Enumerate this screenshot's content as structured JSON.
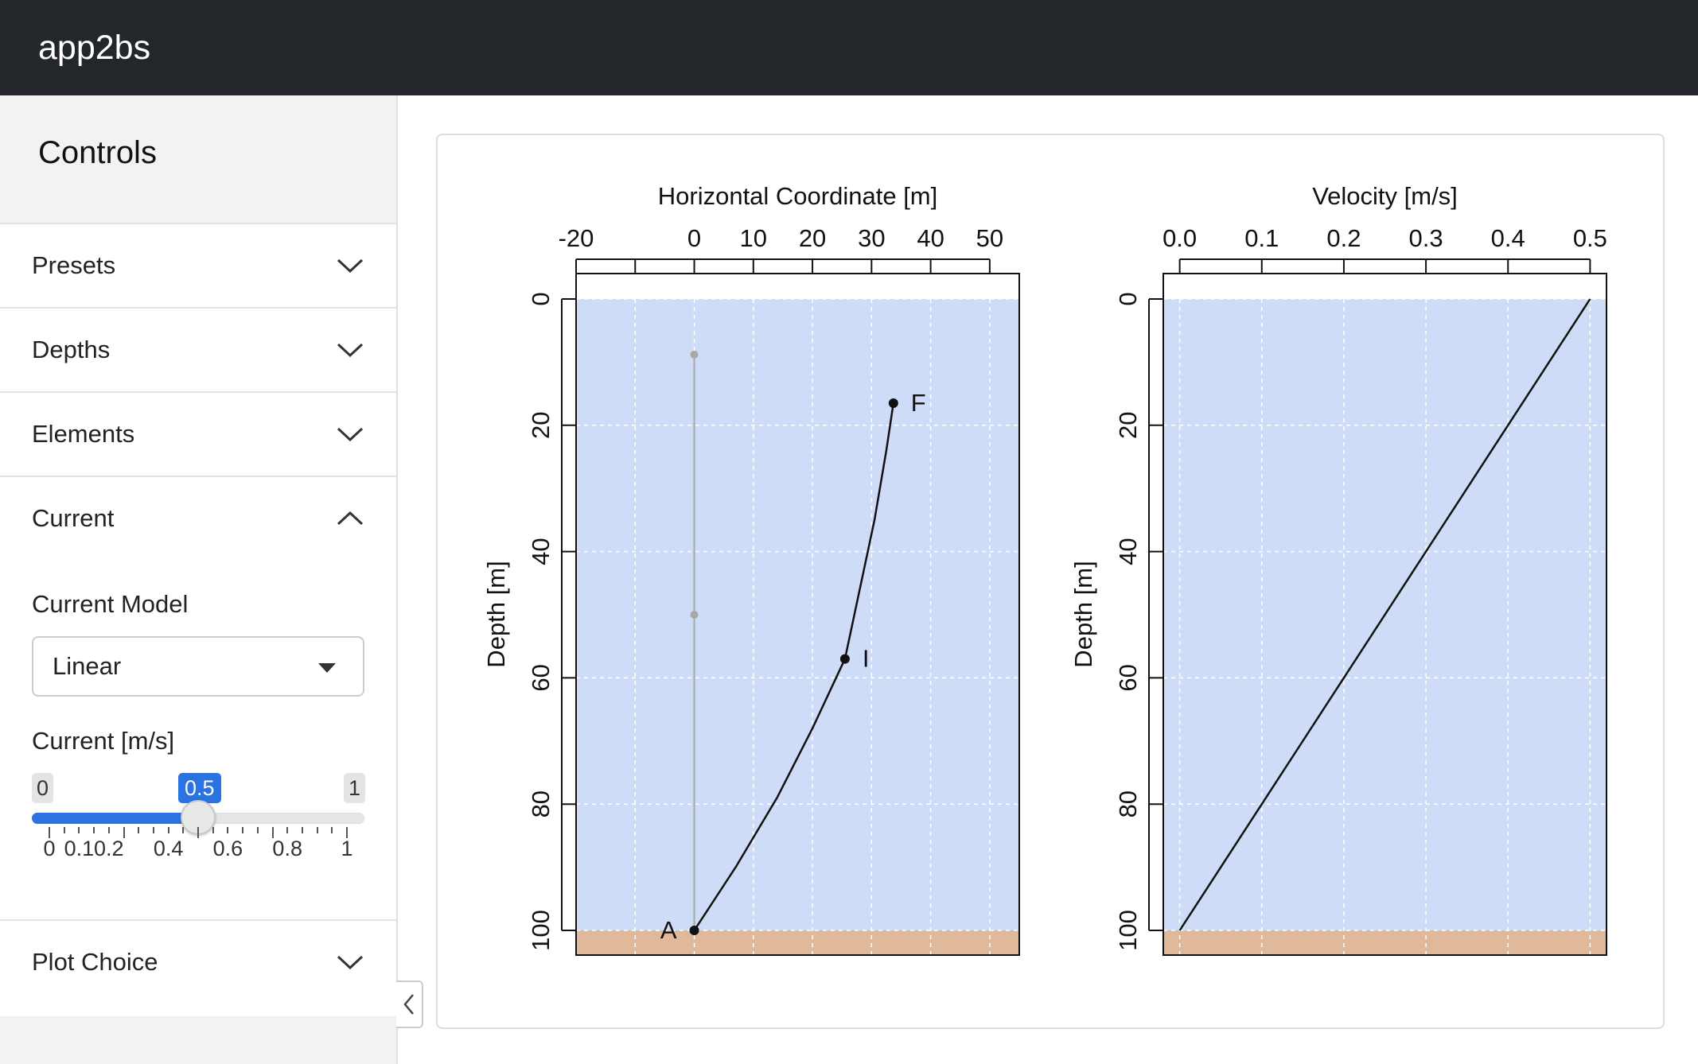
{
  "app": {
    "title": "app2bs"
  },
  "sidebar": {
    "title": "Controls",
    "sections": [
      {
        "label": "Presets",
        "expanded": false
      },
      {
        "label": "Depths",
        "expanded": false
      },
      {
        "label": "Elements",
        "expanded": false
      },
      {
        "label": "Current",
        "expanded": true
      },
      {
        "label": "Plot Choice",
        "expanded": false
      }
    ],
    "current": {
      "model_label": "Current Model",
      "model_value": "Linear",
      "speed_label": "Current [m/s]",
      "slider": {
        "min_label": "0",
        "max_label": "1",
        "value_label": "0.5",
        "min": 0,
        "max": 1,
        "value": 0.5,
        "tick_labels": [
          "0",
          "0.1",
          "0.2",
          "0.4",
          "0.6",
          "0.8",
          "1"
        ]
      }
    }
  },
  "colors": {
    "navbar": "#23272b",
    "accent": "#2b73e0",
    "water": "#cfdcf8",
    "seabed": "#dfb99a"
  },
  "chart_data": [
    {
      "type": "line",
      "title": "Horizontal Coordinate [m]",
      "xlabel": "Horizontal Coordinate [m]",
      "ylabel": "Depth [m]",
      "xlim": [
        -20,
        55
      ],
      "ylim": [
        100,
        0
      ],
      "xticks": [
        "-20",
        "0",
        "10",
        "20",
        "30",
        "40",
        "50"
      ],
      "yticks": [
        "0",
        "20",
        "40",
        "60",
        "80",
        "100"
      ],
      "seabed_depth": 100,
      "series": [
        {
          "x": [
            0,
            0
          ],
          "y": [
            8.8,
            100
          ]
        },
        {
          "x": [
            0,
            7,
            14,
            20,
            25.5,
            28,
            30.5,
            32.5,
            33.7
          ],
          "y": [
            100,
            90,
            79,
            68,
            57,
            46,
            35,
            24,
            16.5
          ]
        }
      ],
      "points": [
        {
          "label": "F",
          "x": 33.7,
          "y": 16.5
        },
        {
          "label": "I",
          "x": 25.5,
          "y": 57
        },
        {
          "label": "A",
          "x": 0,
          "y": 100
        }
      ],
      "grey_points": [
        {
          "x": 0,
          "y": 8.8
        },
        {
          "x": 0,
          "y": 50
        }
      ]
    },
    {
      "type": "line",
      "title": "Velocity [m/s]",
      "xlabel": "Velocity [m/s]",
      "ylabel": "Depth [m]",
      "xlim": [
        -0.02,
        0.52
      ],
      "ylim": [
        100,
        0
      ],
      "xticks": [
        "0.0",
        "0.1",
        "0.2",
        "0.3",
        "0.4",
        "0.5"
      ],
      "yticks": [
        "0",
        "20",
        "40",
        "60",
        "80",
        "100"
      ],
      "seabed_depth": 100,
      "series": [
        {
          "x": [
            0.0,
            0.5
          ],
          "y": [
            100,
            0
          ]
        }
      ]
    }
  ]
}
